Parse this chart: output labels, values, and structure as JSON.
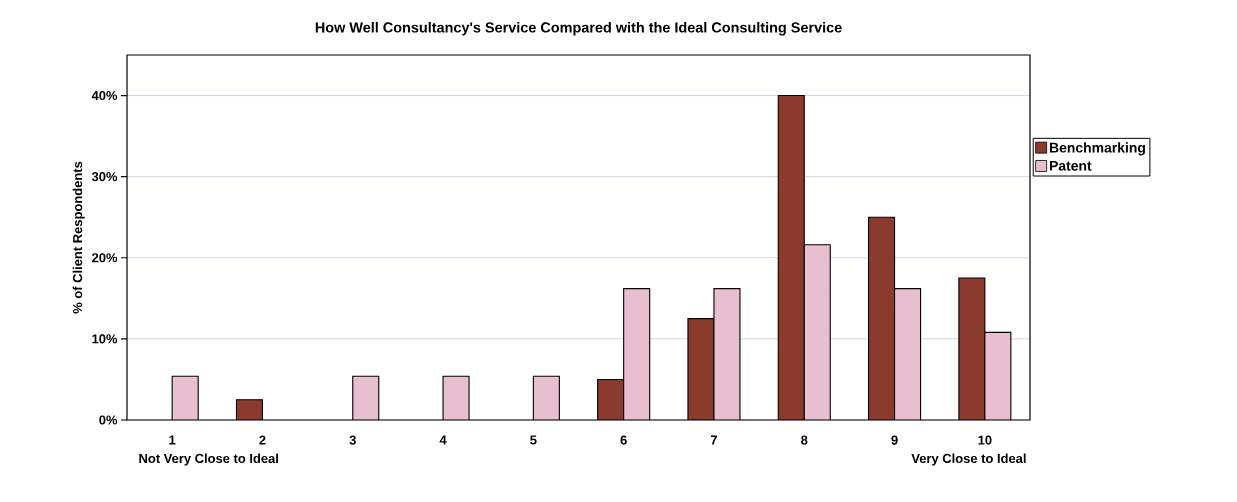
{
  "chart_data": {
    "type": "bar",
    "title": "How Well Consultancy's Service Compared with the Ideal Consulting Service",
    "categories": [
      "1",
      "2",
      "3",
      "4",
      "5",
      "6",
      "7",
      "8",
      "9",
      "10"
    ],
    "series": [
      {
        "name": "Benchmarking",
        "color": "#8b3a2e",
        "values": [
          null,
          2.5,
          null,
          null,
          null,
          5,
          12.5,
          40,
          25,
          17.5
        ]
      },
      {
        "name": "Patent",
        "color": "#e8bfcf",
        "values": [
          5.4,
          null,
          5.4,
          5.4,
          5.4,
          16.2,
          16.2,
          21.6,
          16.2,
          10.8
        ]
      }
    ],
    "ylabel": "% of Client Respondents",
    "ylim": [
      0,
      45
    ],
    "yticks": [
      {
        "value": 0,
        "label": "0%"
      },
      {
        "value": 10,
        "label": "10%"
      },
      {
        "value": 20,
        "label": "20%"
      },
      {
        "value": 30,
        "label": "30%"
      },
      {
        "value": 40,
        "label": "40%"
      }
    ],
    "annotations": [
      "Not Very Close to Ideal",
      "Very Close to Ideal"
    ],
    "grid": "y",
    "legend": "right"
  }
}
